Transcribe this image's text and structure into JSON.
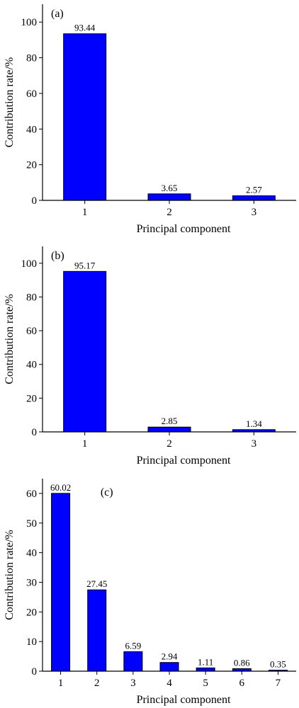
{
  "chart_data": [
    {
      "type": "bar",
      "panel_label": "(a)",
      "categories": [
        "1",
        "2",
        "3"
      ],
      "values": [
        93.44,
        3.65,
        2.57
      ],
      "data_labels": [
        "93.44",
        "3.65",
        "2.57"
      ],
      "xlabel": "Principal component",
      "ylabel": "Contribution rate/%",
      "ylim": [
        0,
        110
      ],
      "yticks": [
        0,
        20,
        40,
        60,
        80,
        100
      ],
      "bar_color": "#0000ff",
      "grid": false
    },
    {
      "type": "bar",
      "panel_label": "(b)",
      "categories": [
        "1",
        "2",
        "3"
      ],
      "values": [
        95.17,
        2.85,
        1.34
      ],
      "data_labels": [
        "95.17",
        "2.85",
        "1.34"
      ],
      "xlabel": "Principal component",
      "ylabel": "Contribution rate/%",
      "ylim": [
        0,
        110
      ],
      "yticks": [
        0,
        20,
        40,
        60,
        80,
        100
      ],
      "bar_color": "#0000ff",
      "grid": false
    },
    {
      "type": "bar",
      "panel_label": "(c)",
      "categories": [
        "1",
        "2",
        "3",
        "4",
        "5",
        "6",
        "7"
      ],
      "values": [
        60.02,
        27.45,
        6.59,
        2.94,
        1.11,
        0.86,
        0.35
      ],
      "data_labels": [
        "60.02",
        "27.45",
        "6.59",
        "2.94",
        "1.11",
        "0.86",
        "0.35"
      ],
      "xlabel": "Principal component",
      "ylabel": "Contribution rate/%",
      "ylim": [
        0,
        65
      ],
      "yticks": [
        0,
        10,
        20,
        30,
        40,
        50,
        60
      ],
      "bar_color": "#0000ff",
      "grid": false
    }
  ]
}
